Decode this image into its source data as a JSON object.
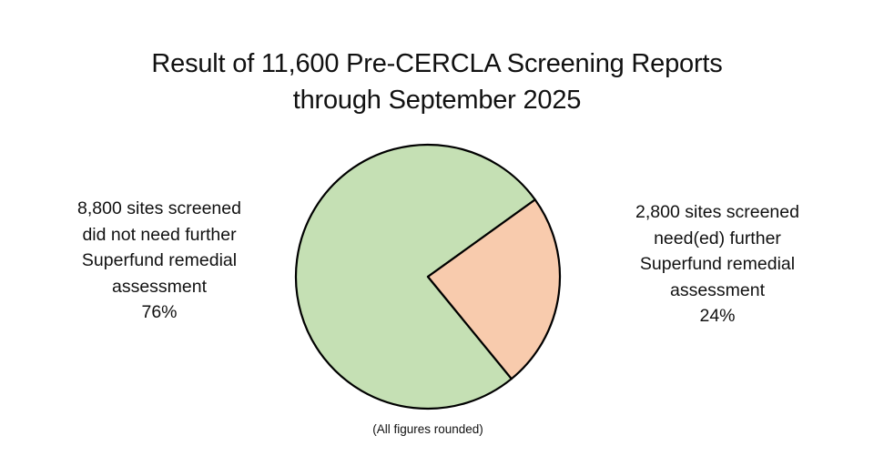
{
  "chart_data": {
    "type": "pie",
    "title": "Result of 11,600 Pre-CERCLA Screening Reports through September 2025",
    "title_lines": [
      "Result of 11,600 Pre-CERCLA Screening Reports",
      "through September 2025"
    ],
    "categories": [
      "8,800 sites screened did not need further Superfund remedial assessment",
      "2,800 sites screened need(ed) further Superfund remedial assessment"
    ],
    "values": [
      76,
      24
    ],
    "counts": [
      8800,
      2800
    ],
    "total": 11600,
    "units": "percent",
    "colors": [
      "#c5e0b4",
      "#f8cbad"
    ],
    "outline_color": "#000000",
    "legend": "none (direct labels left and right of pie)",
    "footnote": "(All figures rounded)"
  },
  "labels": {
    "left": {
      "lines": [
        "8,800 sites screened",
        "did not need further",
        "Superfund remedial",
        "assessment",
        "76%"
      ]
    },
    "right": {
      "lines": [
        "2,800 sites screened",
        "need(ed) further",
        "Superfund remedial",
        "assessment",
        "24%"
      ]
    }
  },
  "footnote": "(All figures rounded)"
}
